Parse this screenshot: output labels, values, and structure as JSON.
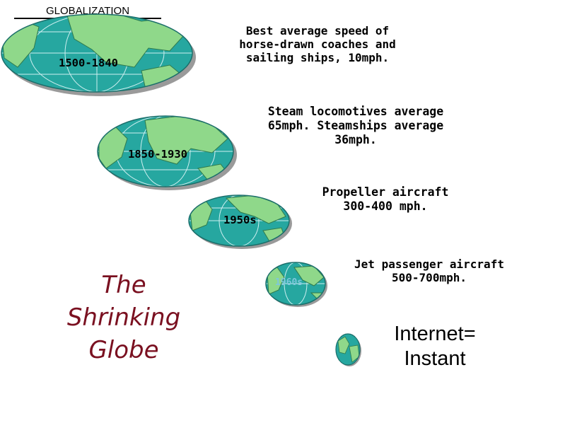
{
  "header": {
    "title": "GLOBALIZATION"
  },
  "eras": [
    {
      "label": "1500-1840",
      "caption": "Best average speed of horse-drawn coaches and sailing ships, 10mph."
    },
    {
      "label": "1850-1930",
      "caption": "Steam locomotives average 65mph. Steamships average 36mph."
    },
    {
      "label": "1950s",
      "caption": "Propeller aircraft 300-400 mph."
    },
    {
      "label": "1960s",
      "caption": "Jet passenger aircraft 500-700mph."
    }
  ],
  "internet": {
    "caption": "Internet= Instant"
  },
  "big_title": "The Shrinking Globe",
  "colors": {
    "ocean": "#26a7a0",
    "land": "#8fd88a",
    "gridline": "#cfeff0",
    "shadow": "#9a9a9a",
    "big_title": "#7a1020"
  },
  "icons": [
    "globe-icon"
  ]
}
